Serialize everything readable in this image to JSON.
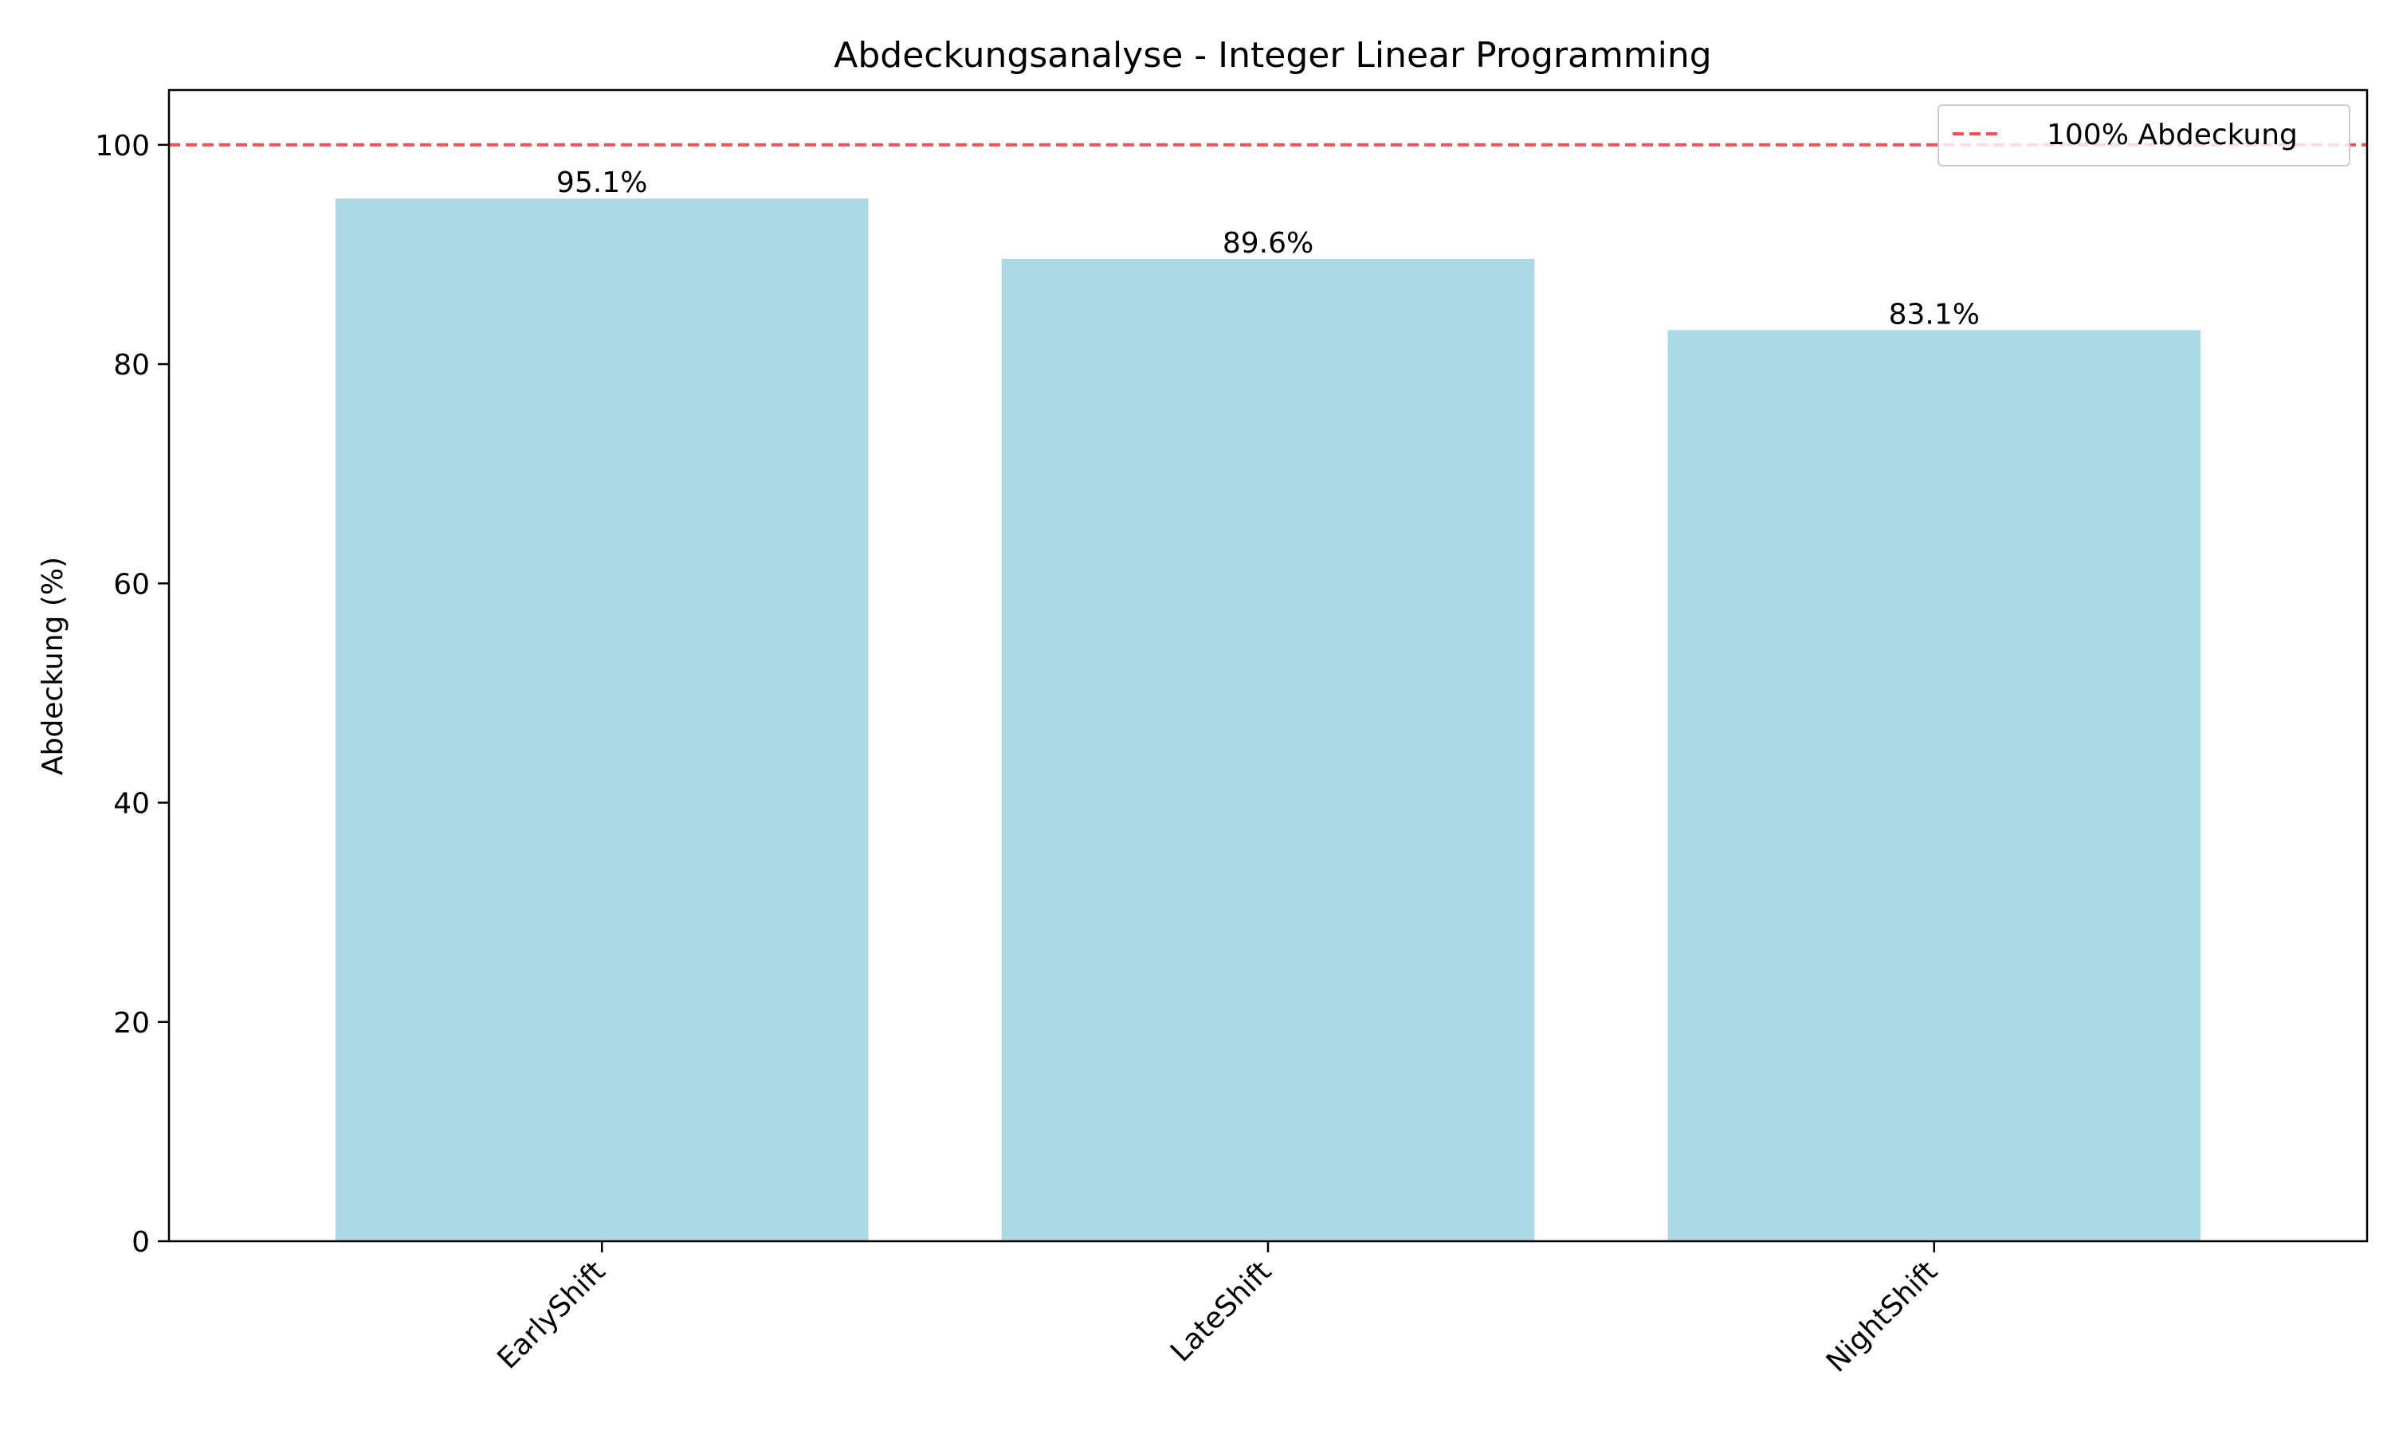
{
  "chart_data": {
    "type": "bar",
    "title": "Abdeckungsanalyse - Integer Linear Programming",
    "xlabel": "",
    "ylabel": "Abdeckung (%)",
    "categories": [
      "EarlyShift",
      "LateShift",
      "NightShift"
    ],
    "values": [
      95.1,
      89.6,
      83.1
    ],
    "value_labels": [
      "95.1%",
      "89.6%",
      "83.1%"
    ],
    "ylim": [
      0,
      105
    ],
    "yticks": [
      0,
      20,
      40,
      60,
      80,
      100
    ],
    "bar_color": "#add8e6",
    "reference_line": {
      "y": 100,
      "label": "100% Abdeckung",
      "color": "#ff0000",
      "style": "dashed"
    },
    "legend_position": "top-right",
    "grid": false
  }
}
